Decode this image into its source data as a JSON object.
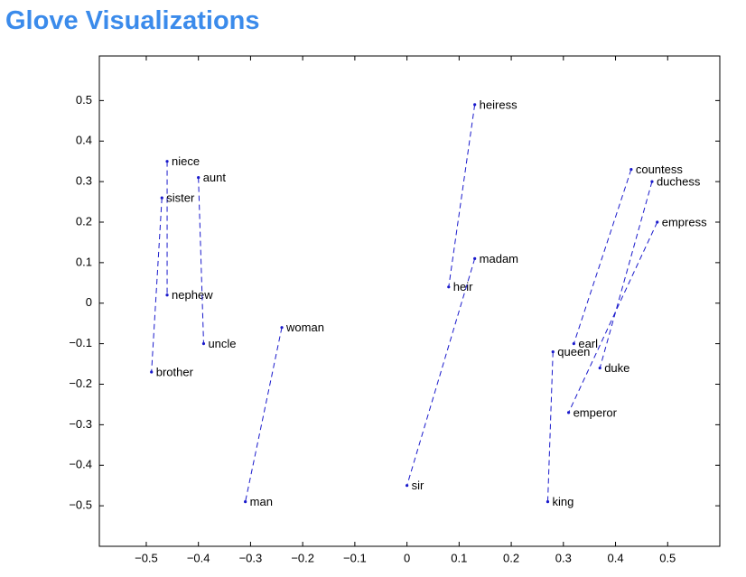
{
  "chart_data": {
    "type": "scatter",
    "title": "Glove Visualizations",
    "color": "#1a1acc",
    "pairs": [
      {
        "labels": [
          "heiress",
          "heir"
        ],
        "x": [
          0.13,
          0.08
        ],
        "y": [
          0.49,
          0.04
        ]
      },
      {
        "labels": [
          "madam",
          "sir"
        ],
        "x": [
          0.13,
          0
        ],
        "y": [
          0.11,
          -0.45
        ]
      },
      {
        "labels": [
          "niece",
          "nephew"
        ],
        "x": [
          -0.46,
          -0.46
        ],
        "y": [
          0.35,
          0.02
        ]
      },
      {
        "labels": [
          "aunt",
          "uncle"
        ],
        "x": [
          -0.4,
          -0.39
        ],
        "y": [
          0.31,
          -0.1
        ]
      },
      {
        "labels": [
          "sister",
          "brother"
        ],
        "x": [
          -0.47,
          -0.49
        ],
        "y": [
          0.26,
          -0.17
        ]
      },
      {
        "labels": [
          "woman",
          "man"
        ],
        "x": [
          -0.24,
          -0.31
        ],
        "y": [
          -0.06,
          -0.49
        ]
      },
      {
        "labels": [
          "countess",
          "earl"
        ],
        "x": [
          0.43,
          0.32
        ],
        "y": [
          0.33,
          -0.1
        ]
      },
      {
        "labels": [
          "duchess",
          "duke"
        ],
        "x": [
          0.47,
          0.37
        ],
        "y": [
          0.3,
          -0.16
        ]
      },
      {
        "labels": [
          "empress",
          "emperor"
        ],
        "x": [
          0.48,
          0.31
        ],
        "y": [
          0.2,
          -0.27
        ]
      },
      {
        "labels": [
          "queen",
          "king"
        ],
        "x": [
          0.28,
          0.27
        ],
        "y": [
          -0.12,
          -0.49
        ]
      }
    ],
    "xlim": [
      -0.59,
      0.6
    ],
    "xticks": [
      {
        "value": -0.5,
        "label": "−0.5"
      },
      {
        "value": -0.4,
        "label": "−0.4"
      },
      {
        "value": -0.3,
        "label": "−0.3"
      },
      {
        "value": -0.2,
        "label": "−0.2"
      },
      {
        "value": -0.1,
        "label": "−0.1"
      },
      0,
      0.1,
      0.2,
      0.3,
      0.4,
      0.5
    ],
    "ylim": [
      -0.6,
      0.61
    ],
    "yticks": [
      {
        "value": -0.5,
        "label": "−0.5"
      },
      {
        "value": -0.4,
        "label": "−0.4"
      },
      {
        "value": -0.3,
        "label": "−0.3"
      },
      {
        "value": -0.2,
        "label": "−0.2"
      },
      {
        "value": -0.1,
        "label": "−0.1"
      },
      0,
      0.1,
      0.2,
      0.3,
      0.4,
      0.5
    ]
  }
}
